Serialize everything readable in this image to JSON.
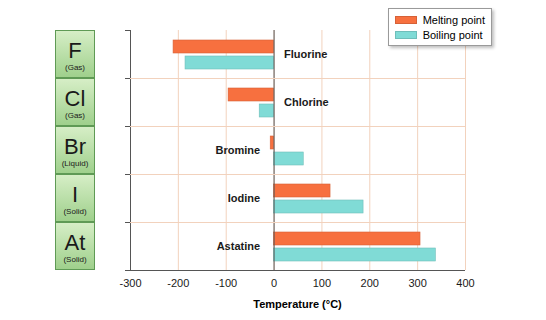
{
  "chart_data": {
    "type": "bar",
    "orientation": "horizontal",
    "categories": [
      "Fluorine",
      "Chlorine",
      "Bromine",
      "Iodine",
      "Astatine"
    ],
    "symbols": [
      "F",
      "Cl",
      "Br",
      "I",
      "At"
    ],
    "states": [
      "(Gas)",
      "(Gas)",
      "(Liquid)",
      "(Solid)",
      "(Solid)"
    ],
    "series": [
      {
        "name": "Melting point",
        "color": "#f7703f",
        "values": [
          -210,
          -95,
          -7,
          118,
          306
        ]
      },
      {
        "name": "Boiling point",
        "color": "#80dbd6",
        "values": [
          -185,
          -30,
          62,
          187,
          338
        ]
      }
    ],
    "xlabel": "Temperature (°C)",
    "xlim": [
      -300,
      400
    ],
    "xticks": [
      -300,
      -200,
      -100,
      0,
      100,
      200,
      300,
      400
    ],
    "grid": true,
    "legend": "top-right"
  }
}
